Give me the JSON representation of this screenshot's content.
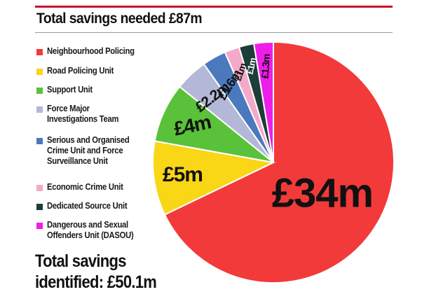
{
  "chart_data": {
    "type": "pie",
    "title": "Total savings needed £87m",
    "footer": "Total savings\nidentified: £50.1m",
    "legend_position": "left",
    "slices": [
      {
        "label": "Neighbourhood Policing",
        "value": 34,
        "value_label": "£34m",
        "color": "#f23a3a"
      },
      {
        "label": "Road Policing Unit",
        "value": 5,
        "value_label": "£5m",
        "color": "#f9d616"
      },
      {
        "label": "Support Unit",
        "value": 4,
        "value_label": "£4m",
        "color": "#59c23a"
      },
      {
        "label": "Force Major\nInvestigations Team",
        "value": 2.2,
        "value_label": "£2.2m",
        "color": "#b4b8d8"
      },
      {
        "label": "Serious and Organised\nCrime Unit and Force\nSurveillance Unit",
        "value": 1.6,
        "value_label": "£1.6m",
        "color": "#4a79be"
      },
      {
        "label": "Economic Crime Unit",
        "value": 1,
        "value_label": "£1m",
        "color": "#f4a9c8"
      },
      {
        "label": "Dedicated Source Unit",
        "value": 1,
        "value_label": "£1m",
        "color": "#1c3d38"
      },
      {
        "label": "Dangerous and Sexual\nOffenders Unit (DASOU)",
        "value": 1.3,
        "value_label": "£1.3m",
        "color": "#ee1ee8"
      }
    ]
  }
}
